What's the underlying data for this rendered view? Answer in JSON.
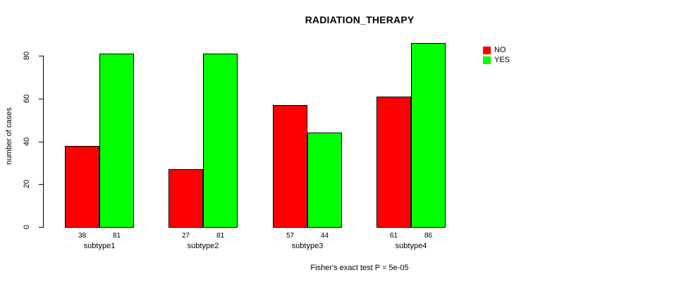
{
  "title": "RADIATION_THERAPY",
  "footer": "Fisher's exact test P = 5e-05",
  "chart_data": {
    "type": "bar",
    "title": "RADIATION_THERAPY",
    "xlabel": "",
    "ylabel": "number of cases",
    "categories": [
      "subtype1",
      "subtype2",
      "subtype3",
      "subtype4"
    ],
    "series": [
      {
        "name": "NO",
        "color": "#FF0000",
        "values": [
          38,
          27,
          57,
          61
        ]
      },
      {
        "name": "YES",
        "color": "#00FF00",
        "values": [
          81,
          81,
          44,
          86
        ]
      }
    ],
    "yticks": [
      0,
      20,
      40,
      60,
      80
    ],
    "ylim": [
      0,
      86
    ],
    "grid": false,
    "bar_borders": "#000000",
    "bar_value_labels_shown": true,
    "legend_position": "top-right-outside",
    "annotation": "Fisher's exact test P = 5e-05"
  }
}
